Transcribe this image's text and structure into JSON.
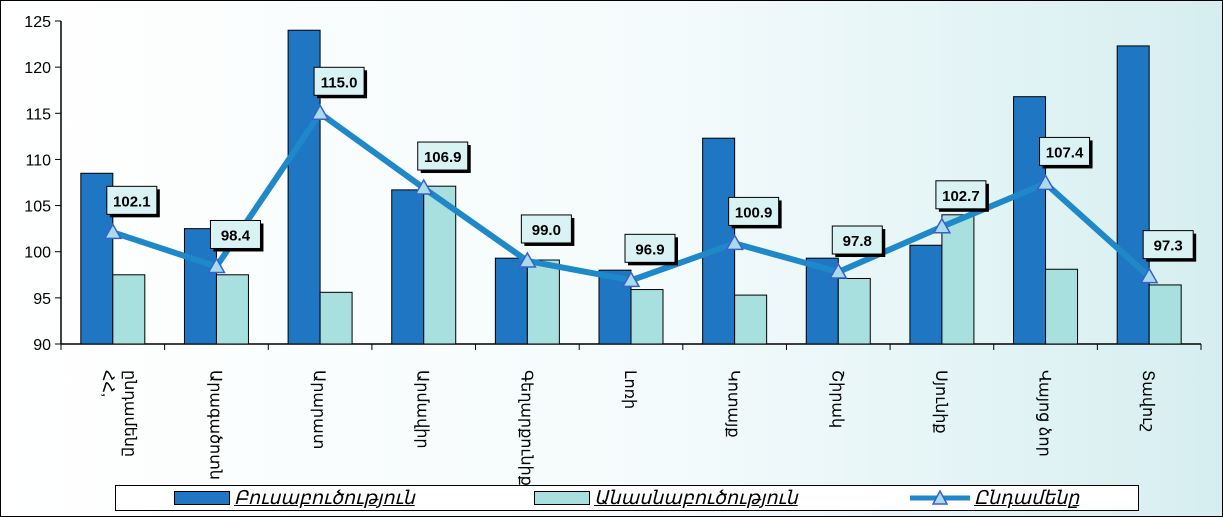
{
  "chart_data": {
    "type": "bar",
    "categories": [
      "ՀՀ, ընդամենը",
      "Արագածոտն",
      "Արարատ",
      "Արմավիր",
      "Գեղարքունիք",
      "Լոռի",
      "Կոտայք",
      "Շիրակ",
      "Սյունիք",
      "Վայոց ձոր",
      "Տավուշ"
    ],
    "series": [
      {
        "name": "Բուսաբուծություն",
        "kind": "bar",
        "color": "#1f77c4",
        "values": [
          108.5,
          102.5,
          124.0,
          106.7,
          99.3,
          98.0,
          112.3,
          99.3,
          100.7,
          116.8,
          122.3
        ]
      },
      {
        "name": "Անասնաբուծություն",
        "kind": "bar",
        "color": "#a8e0e0",
        "values": [
          97.5,
          97.5,
          95.6,
          107.1,
          99.1,
          95.9,
          95.3,
          97.1,
          104.0,
          98.1,
          96.4
        ]
      },
      {
        "name": "Ընդամենը",
        "kind": "line",
        "color": "#1f88c8",
        "values": [
          102.1,
          98.4,
          115.0,
          106.9,
          99.0,
          96.9,
          100.9,
          97.8,
          102.7,
          107.4,
          97.3
        ],
        "labels": [
          "102.1",
          "98.4",
          "115.0",
          "106.9",
          "99.0",
          "96.9",
          "100.9",
          "97.8",
          "102.7",
          "107.4",
          "97.3"
        ]
      }
    ],
    "ylim": [
      90,
      125
    ],
    "yticks": [
      "90",
      "95",
      "100",
      "105",
      "110",
      "115",
      "120",
      "125"
    ],
    "grid": false,
    "legend_position": "bottom"
  }
}
